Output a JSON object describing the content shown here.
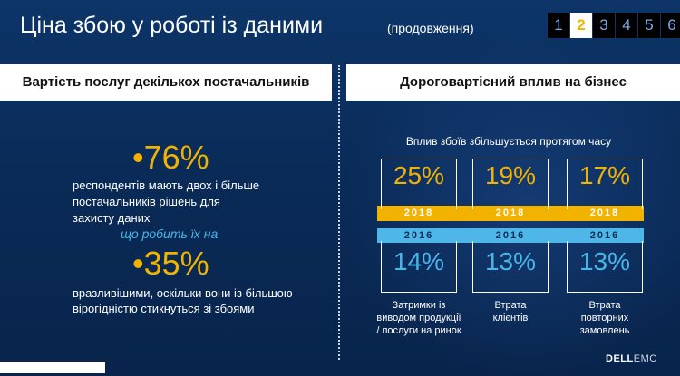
{
  "header": {
    "title": "Ціна збою у роботі із даними",
    "subtitle": "(продовження)",
    "pages": [
      "1",
      "2",
      "3",
      "4",
      "5",
      "6"
    ],
    "active_page": "2"
  },
  "left": {
    "heading": "Вартість послуг декількох постачальників",
    "stat1_value": "•76%",
    "stat1_line1": "респондентів мають двох і більше",
    "stat1_line2": "постачальників рішень для",
    "stat1_line3": "захисту даних",
    "connector": "що робить їх на",
    "stat2_value": "•35%",
    "stat2_line1": "вразливішими, оскільки вони із більшою",
    "stat2_line2": "вірогідністю стикнуться зі збоями"
  },
  "right": {
    "heading": "Дороговартісний вплив на бізнес",
    "caption": "Вплив збоїв збільшується протягом часу",
    "year_top": "2018",
    "year_bottom": "2016",
    "cards": [
      {
        "value_2018": "25%",
        "value_2016": "14%",
        "label_line1": "Затримки із",
        "label_line2": "виводом продукції",
        "label_line3": "/ послуги на ринок"
      },
      {
        "value_2018": "19%",
        "value_2016": "13%",
        "label_line1": "Втрата",
        "label_line2": "клієнтів",
        "label_line3": ""
      },
      {
        "value_2018": "17%",
        "value_2016": "13%",
        "label_line1": "Втрата",
        "label_line2": "повторних",
        "label_line3": "замовлень"
      }
    ]
  },
  "logo": {
    "brand": "DELL",
    "suffix": "EMC"
  },
  "colors": {
    "gold": "#f2b200",
    "cyan": "#49b6ea",
    "background": "#0b2a55"
  }
}
